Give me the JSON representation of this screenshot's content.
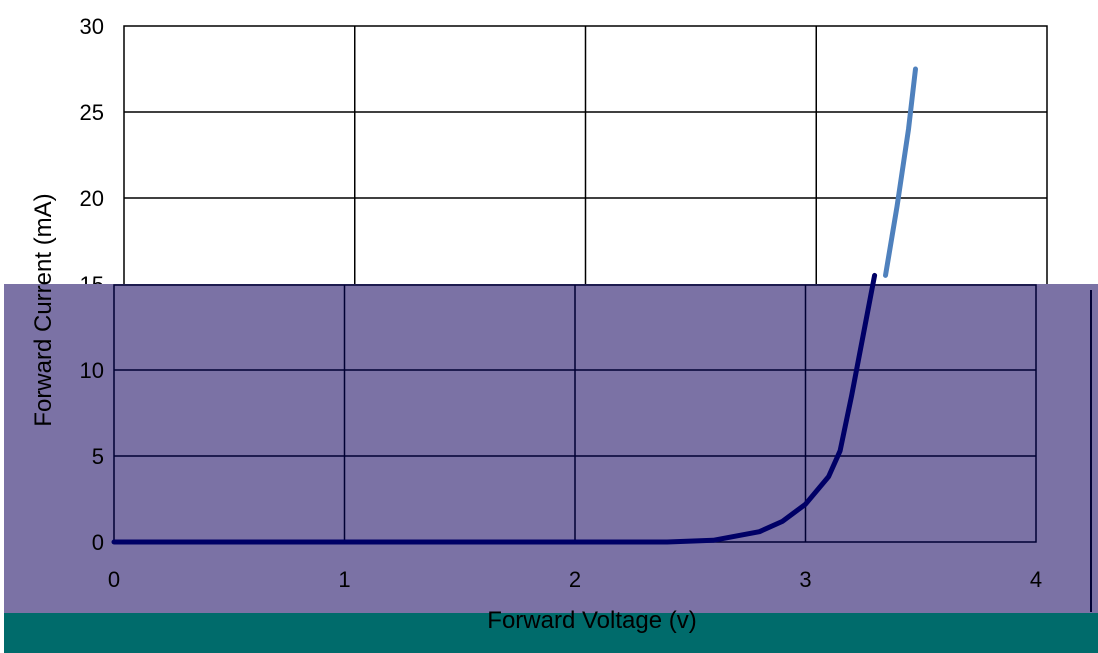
{
  "chart_data": {
    "type": "line",
    "title": "",
    "xlabel": "Forward Voltage (v)",
    "ylabel": "Forward Current (mA)",
    "xlim": [
      0,
      4
    ],
    "ylim": [
      0,
      30
    ],
    "x_ticks": [
      "0",
      "1",
      "2",
      "3",
      "4"
    ],
    "y_ticks": [
      "0",
      "5",
      "10",
      "15",
      "20",
      "25",
      "30"
    ],
    "grid": true,
    "legend": "none",
    "colors": {
      "line": "#4f81bd",
      "line_in_overlay": "#000066",
      "overlay": "#7b72a5",
      "bottom_band": "#006b6b",
      "grid": "#000000"
    },
    "series": [
      {
        "x": [
          0,
          1,
          1.6,
          2,
          2.4,
          2.6,
          2.8,
          2.9,
          3.0,
          3.1,
          3.15,
          3.2,
          3.25,
          3.3,
          3.35,
          3.4,
          3.43
        ],
        "y": [
          0,
          0,
          0,
          0,
          0,
          0.1,
          0.6,
          1.2,
          2.2,
          3.8,
          5.3,
          8.5,
          12,
          15.5,
          19.5,
          24,
          27.5
        ]
      }
    ]
  }
}
